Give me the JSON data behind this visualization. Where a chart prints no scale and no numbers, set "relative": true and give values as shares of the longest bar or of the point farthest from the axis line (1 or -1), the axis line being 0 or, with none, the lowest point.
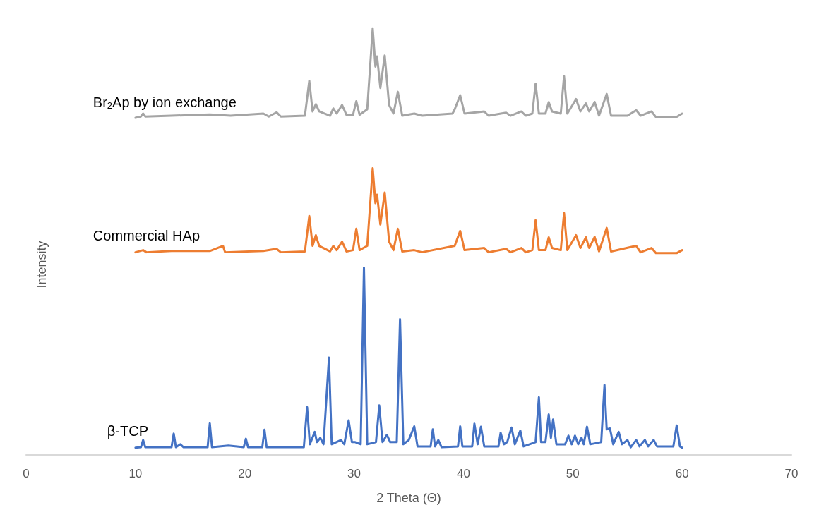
{
  "chart_data": {
    "type": "line",
    "relative": true,
    "xlabel": "2 Theta (Θ)",
    "ylabel": "Intensity",
    "xlim": [
      0,
      70
    ],
    "xticks": [
      0,
      10,
      20,
      30,
      40,
      50,
      60,
      70
    ],
    "grid": false,
    "legend": false,
    "marker": "none",
    "line_style": "solid",
    "series": [
      {
        "name": "Br$_{2}$Ap by ion exchange",
        "color": "#a5a5a5",
        "x": [
          10,
          10.5,
          10.7,
          10.9,
          13.3,
          16.8,
          18.7,
          21.7,
          22.2,
          22.9,
          23.3,
          25.5,
          25.9,
          26.2,
          26.5,
          26.8,
          27.8,
          28.1,
          28.4,
          28.9,
          29.3,
          29.9,
          30.2,
          30.5,
          31.2,
          31.7,
          31.95,
          32.1,
          32.4,
          32.8,
          33.2,
          33.6,
          34.0,
          34.4,
          35.5,
          36.2,
          39.0,
          39.2,
          39.7,
          40.1,
          41.9,
          42.3,
          43.9,
          44.3,
          45.3,
          45.7,
          46.3,
          46.6,
          46.9,
          47.5,
          47.8,
          48.1,
          48.9,
          49.2,
          49.5,
          50.3,
          50.7,
          51.2,
          51.5,
          52.0,
          52.4,
          53.1,
          53.5,
          55.0,
          55.8,
          56.2,
          57.2,
          57.6,
          59.5,
          60
        ],
        "values": [
          0.79,
          0.793,
          0.8,
          0.793,
          0.795,
          0.798,
          0.795,
          0.8,
          0.793,
          0.803,
          0.793,
          0.795,
          0.877,
          0.805,
          0.822,
          0.805,
          0.795,
          0.812,
          0.8,
          0.82,
          0.797,
          0.797,
          0.829,
          0.797,
          0.81,
          1.0,
          0.91,
          0.934,
          0.86,
          0.936,
          0.82,
          0.8,
          0.851,
          0.795,
          0.8,
          0.795,
          0.8,
          0.81,
          0.843,
          0.8,
          0.805,
          0.795,
          0.802,
          0.795,
          0.805,
          0.795,
          0.8,
          0.87,
          0.8,
          0.8,
          0.827,
          0.805,
          0.8,
          0.888,
          0.8,
          0.834,
          0.805,
          0.824,
          0.805,
          0.827,
          0.795,
          0.846,
          0.795,
          0.795,
          0.808,
          0.795,
          0.805,
          0.792,
          0.792,
          0.8
        ]
      },
      {
        "name": "Commercial HAp",
        "color": "#ed7d31",
        "x": [
          10,
          10.7,
          11.0,
          13.3,
          16.8,
          18.0,
          18.2,
          21.7,
          22.9,
          23.3,
          25.5,
          25.9,
          26.2,
          26.5,
          26.8,
          27.8,
          28.1,
          28.4,
          28.9,
          29.3,
          29.9,
          30.2,
          30.5,
          31.2,
          31.7,
          31.95,
          32.1,
          32.4,
          32.8,
          33.2,
          33.6,
          34.0,
          34.4,
          35.5,
          36.2,
          39.2,
          39.7,
          40.1,
          41.9,
          42.3,
          43.9,
          44.3,
          45.3,
          45.7,
          46.3,
          46.6,
          46.9,
          47.5,
          47.8,
          48.1,
          48.9,
          49.2,
          49.5,
          50.3,
          50.7,
          51.2,
          51.5,
          52.0,
          52.4,
          53.1,
          53.5,
          55.8,
          56.2,
          57.2,
          57.6,
          59.5,
          60
        ],
        "values": [
          0.475,
          0.48,
          0.475,
          0.478,
          0.478,
          0.49,
          0.475,
          0.478,
          0.483,
          0.475,
          0.477,
          0.56,
          0.49,
          0.515,
          0.49,
          0.477,
          0.49,
          0.48,
          0.5,
          0.477,
          0.48,
          0.53,
          0.48,
          0.49,
          0.672,
          0.59,
          0.61,
          0.54,
          0.615,
          0.5,
          0.48,
          0.53,
          0.477,
          0.48,
          0.475,
          0.49,
          0.525,
          0.48,
          0.485,
          0.475,
          0.483,
          0.475,
          0.485,
          0.475,
          0.48,
          0.55,
          0.48,
          0.48,
          0.51,
          0.485,
          0.48,
          0.567,
          0.48,
          0.515,
          0.485,
          0.51,
          0.485,
          0.511,
          0.477,
          0.532,
          0.477,
          0.49,
          0.475,
          0.485,
          0.473,
          0.473,
          0.48
        ]
      },
      {
        "name": "β-TCP",
        "color": "#4472c4",
        "x": [
          10.0,
          10.5,
          10.7,
          10.9,
          13.3,
          13.5,
          13.7,
          14.1,
          14.4,
          16.6,
          16.8,
          17.0,
          18.5,
          19.9,
          20.1,
          20.3,
          21.6,
          21.8,
          22.0,
          25.4,
          25.7,
          25.95,
          26.4,
          26.6,
          26.9,
          27.2,
          27.7,
          27.95,
          28.8,
          29.1,
          29.5,
          29.8,
          30.1,
          30.6,
          30.9,
          31.2,
          32.0,
          32.3,
          32.6,
          33.0,
          33.3,
          33.9,
          34.2,
          34.5,
          35.0,
          35.5,
          35.8,
          37.0,
          37.2,
          37.4,
          37.7,
          38.0,
          39.5,
          39.7,
          39.9,
          40.8,
          41.0,
          41.3,
          41.6,
          41.9,
          43.2,
          43.4,
          43.7,
          44.0,
          44.4,
          44.7,
          45.2,
          45.5,
          46.6,
          46.9,
          47.1,
          47.5,
          47.8,
          48.0,
          48.2,
          48.5,
          49.3,
          49.6,
          49.9,
          50.2,
          50.5,
          50.8,
          51.0,
          51.3,
          51.6,
          52.6,
          52.9,
          53.1,
          53.4,
          53.7,
          54.2,
          54.5,
          55.0,
          55.3,
          55.8,
          56.1,
          56.6,
          56.9,
          57.4,
          57.7,
          59.2,
          59.5,
          59.8,
          60.0
        ],
        "values": [
          0.017,
          0.018,
          0.035,
          0.018,
          0.018,
          0.05,
          0.018,
          0.025,
          0.018,
          0.018,
          0.074,
          0.018,
          0.022,
          0.018,
          0.038,
          0.018,
          0.018,
          0.059,
          0.018,
          0.018,
          0.112,
          0.025,
          0.054,
          0.03,
          0.04,
          0.025,
          0.228,
          0.025,
          0.035,
          0.025,
          0.081,
          0.03,
          0.03,
          0.025,
          0.439,
          0.025,
          0.03,
          0.116,
          0.03,
          0.047,
          0.03,
          0.03,
          0.318,
          0.025,
          0.035,
          0.067,
          0.02,
          0.02,
          0.06,
          0.02,
          0.035,
          0.018,
          0.02,
          0.067,
          0.02,
          0.02,
          0.073,
          0.025,
          0.066,
          0.02,
          0.02,
          0.052,
          0.025,
          0.03,
          0.064,
          0.025,
          0.057,
          0.02,
          0.03,
          0.135,
          0.03,
          0.03,
          0.095,
          0.04,
          0.083,
          0.025,
          0.025,
          0.045,
          0.025,
          0.045,
          0.025,
          0.04,
          0.025,
          0.066,
          0.025,
          0.03,
          0.164,
          0.06,
          0.062,
          0.025,
          0.054,
          0.025,
          0.035,
          0.018,
          0.035,
          0.02,
          0.035,
          0.02,
          0.035,
          0.02,
          0.02,
          0.069,
          0.02,
          0.017
        ]
      }
    ]
  }
}
